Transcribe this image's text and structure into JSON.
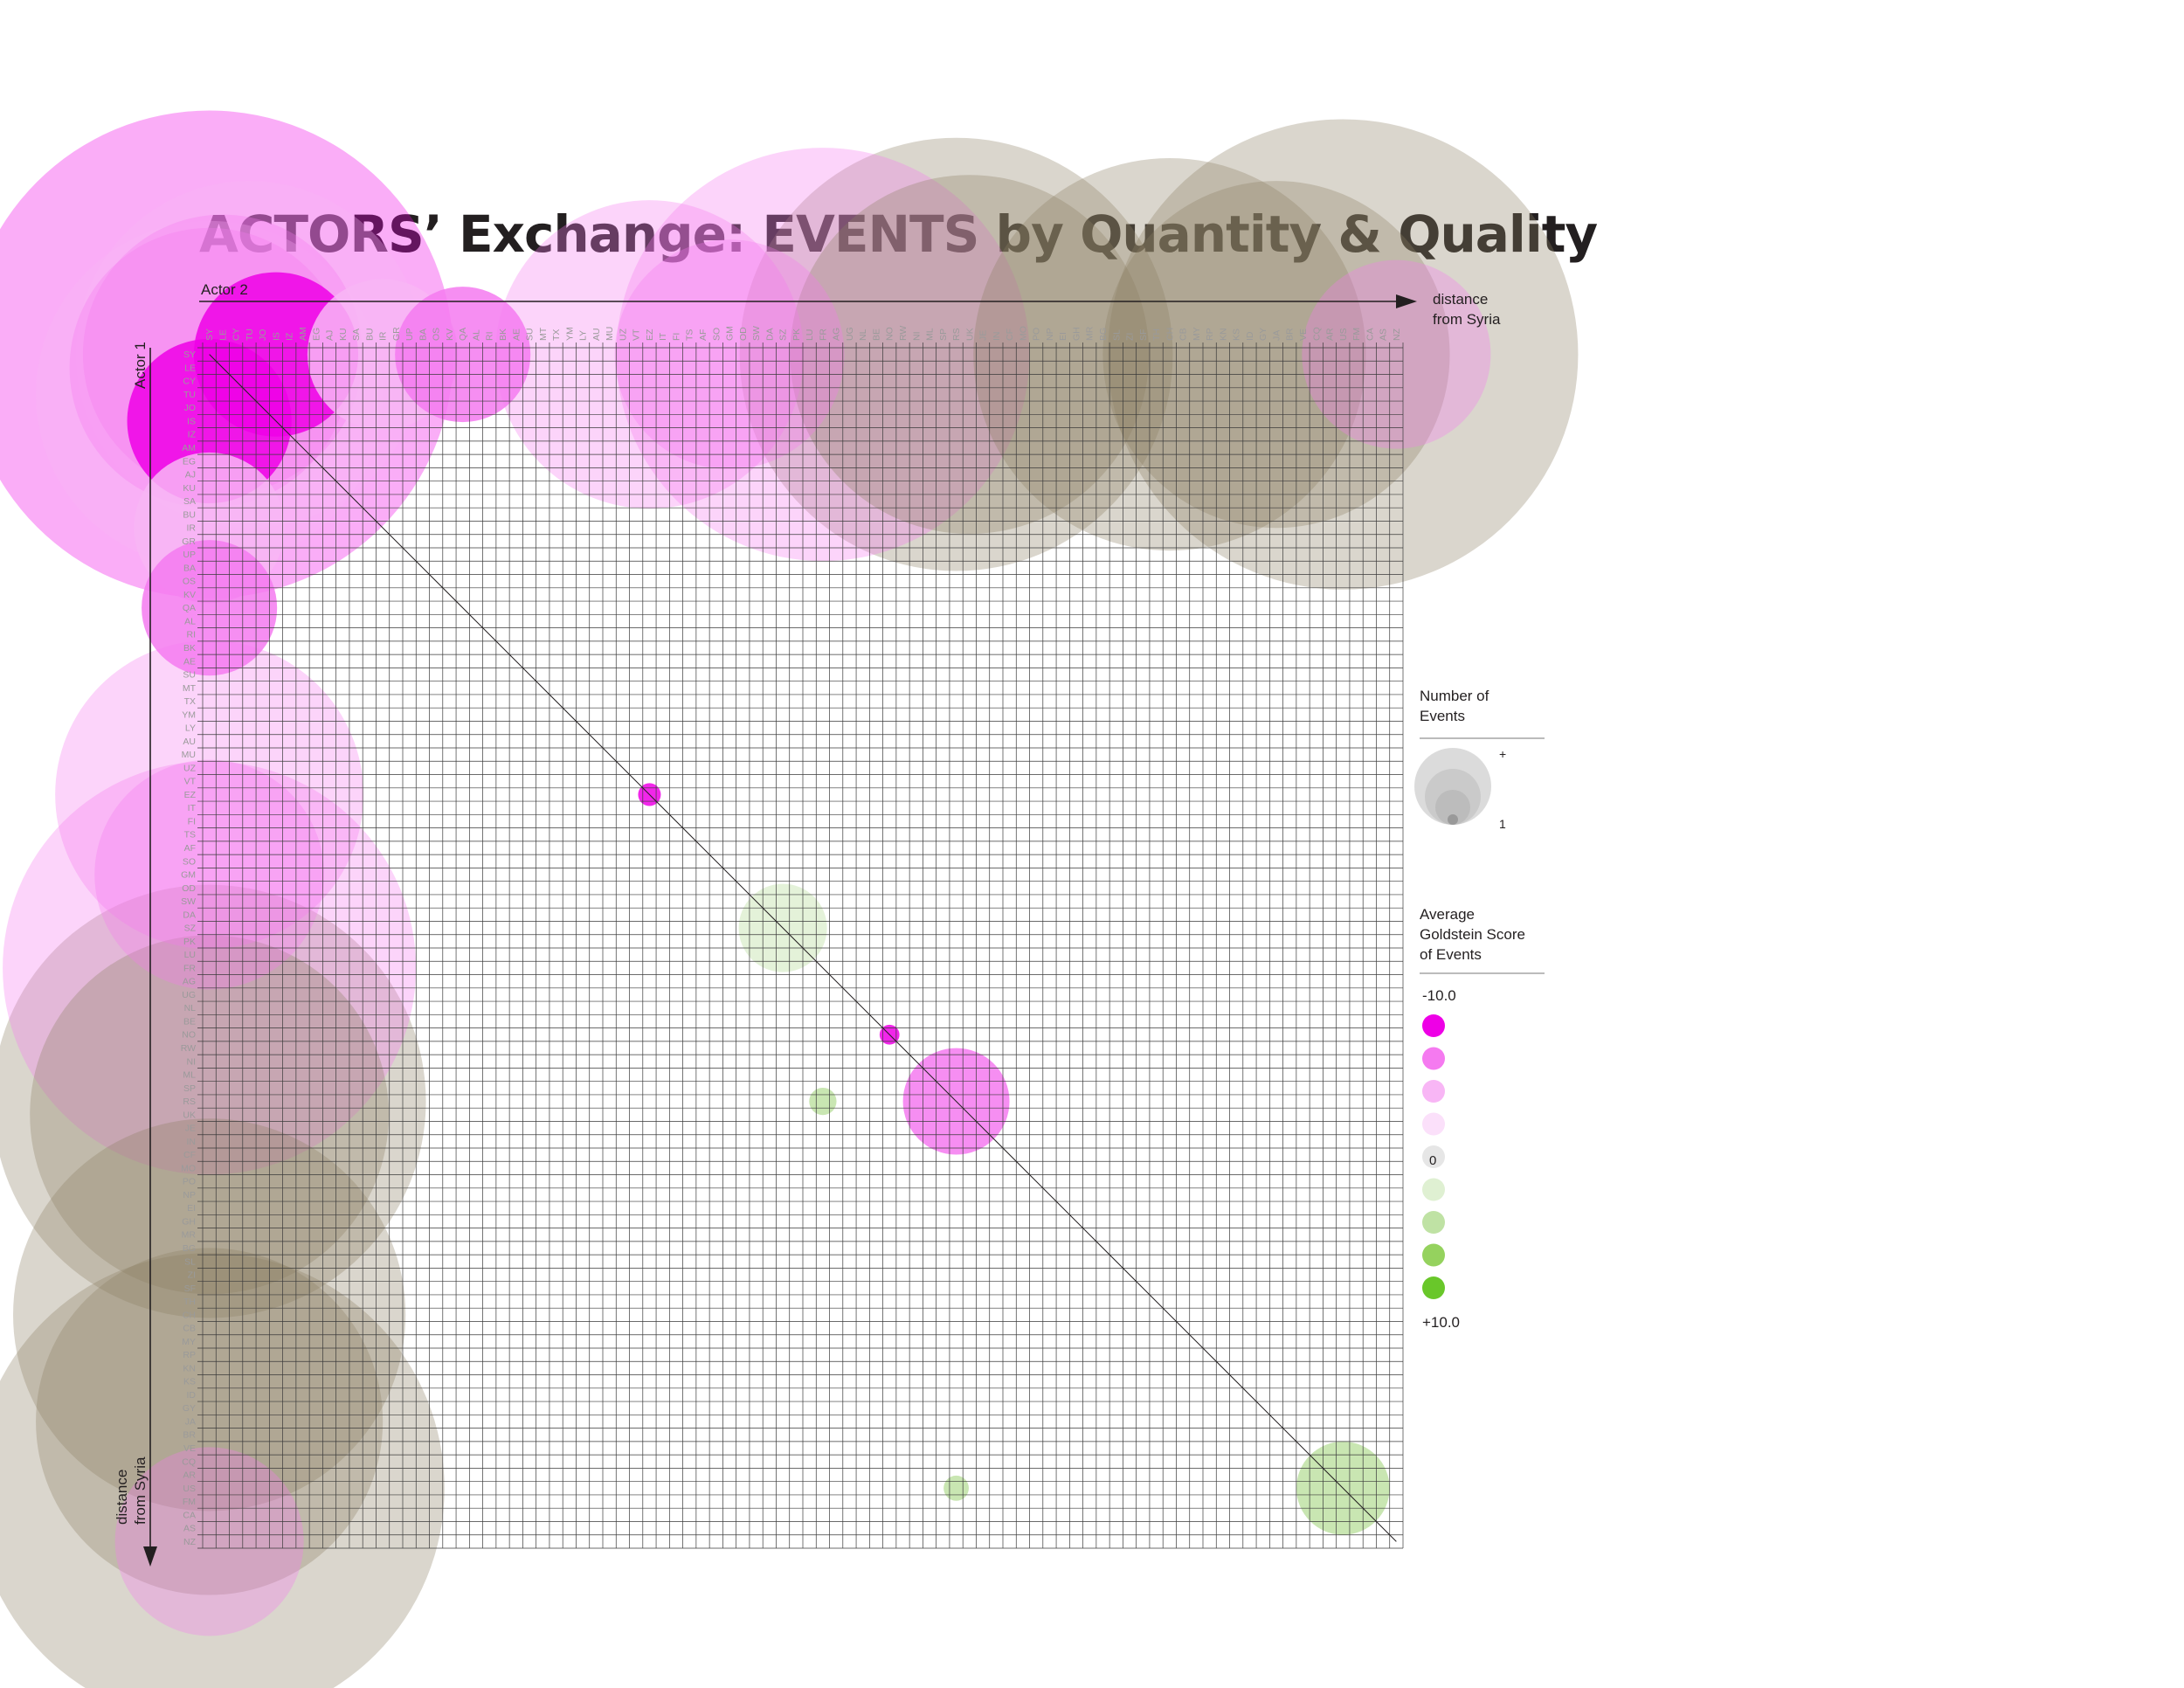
{
  "chart_data": {
    "type": "bubble-matrix",
    "title": "ACTORS’ Exchange: EVENTS by Quantity & Quality",
    "x_axis_label": "Actor 2",
    "y_axis_label": "Actor 1",
    "x_direction_label": [
      "distance",
      "from Syria"
    ],
    "y_direction_label": [
      "distance",
      "from Syria"
    ],
    "countries": [
      "SY",
      "LE",
      "CY",
      "TU",
      "JO",
      "IS",
      "IZ",
      "AM",
      "EG",
      "AJ",
      "KU",
      "SA",
      "BU",
      "IR",
      "GR",
      "UP",
      "BA",
      "OS",
      "KV",
      "QA",
      "AL",
      "RI",
      "BK",
      "AE",
      "SU",
      "MT",
      "TX",
      "YM",
      "LY",
      "AU",
      "MU",
      "UZ",
      "VT",
      "EZ",
      "IT",
      "FI",
      "TS",
      "AF",
      "SO",
      "GM",
      "OD",
      "SW",
      "DA",
      "SZ",
      "PK",
      "LU",
      "FR",
      "AG",
      "UG",
      "NL",
      "BE",
      "NO",
      "RW",
      "NI",
      "ML",
      "SP",
      "RS",
      "UK",
      "JE",
      "IN",
      "CF",
      "MO",
      "PO",
      "NP",
      "EI",
      "GH",
      "MR",
      "BG",
      "SL",
      "ZI",
      "SF",
      "TH",
      "CH",
      "CB",
      "MY",
      "RP",
      "KN",
      "KS",
      "ID",
      "GY",
      "JA",
      "BR",
      "VE",
      "CQ",
      "AR",
      "US",
      "FM",
      "CA",
      "AS",
      "NZ"
    ],
    "legend_size": {
      "title": [
        "Number of",
        "Events"
      ],
      "max_label": "+",
      "min_label": "1"
    },
    "legend_color": {
      "title": [
        "Average",
        "Goldstein Score",
        "of Events"
      ],
      "top_label": "-10.0",
      "zero_label": "0",
      "bottom_label": "+10.0",
      "swatches": [
        "#ee00e6",
        "#f57af0",
        "#f8b6f5",
        "#fbe0fa",
        "#e6e6e6",
        "#dff0d2",
        "#bfe2a4",
        "#95d25e",
        "#69c72a"
      ]
    },
    "events": [
      {
        "a1": "SY",
        "a2": "SY",
        "count": 2800,
        "score": -9
      },
      {
        "a1": "SY",
        "a2": "LE",
        "count": 900,
        "score": -8
      },
      {
        "a1": "LE",
        "a2": "SY",
        "count": 900,
        "score": -8
      },
      {
        "a1": "SY",
        "a2": "TU",
        "count": 1400,
        "score": -6
      },
      {
        "a1": "TU",
        "a2": "SY",
        "count": 1400,
        "score": -6
      },
      {
        "a1": "SY",
        "a2": "IS",
        "count": 300,
        "score": -9
      },
      {
        "a1": "IS",
        "a2": "SY",
        "count": 300,
        "score": -9
      },
      {
        "a1": "SY",
        "a2": "IR",
        "count": 250,
        "score": -5
      },
      {
        "a1": "IR",
        "a2": "SY",
        "count": 250,
        "score": -5
      },
      {
        "a1": "SY",
        "a2": "QA",
        "count": 200,
        "score": -7
      },
      {
        "a1": "QA",
        "a2": "SY",
        "count": 200,
        "score": -7
      },
      {
        "a1": "SY",
        "a2": "FR",
        "count": 2000,
        "score": -8
      },
      {
        "a1": "FR",
        "a2": "SY",
        "count": 2000,
        "score": -8
      },
      {
        "a1": "SY",
        "a2": "EZ",
        "count": 1100,
        "score": -8
      },
      {
        "a1": "EZ",
        "a2": "SY",
        "count": 1100,
        "score": -8
      },
      {
        "a1": "SY",
        "a2": "GM",
        "count": 600,
        "score": -8
      },
      {
        "a1": "GM",
        "a2": "SY",
        "count": 600,
        "score": -8
      },
      {
        "a1": "SY",
        "a2": "UK",
        "count": 1500,
        "score": -3
      },
      {
        "a1": "UK",
        "a2": "SY",
        "count": 1500,
        "score": -3
      },
      {
        "a1": "SY",
        "a2": "RS",
        "count": 2200,
        "score": -2
      },
      {
        "a1": "RS",
        "a2": "SY",
        "count": 2200,
        "score": -2
      },
      {
        "a1": "SY",
        "a2": "CH",
        "count": 1800,
        "score": -3
      },
      {
        "a1": "CH",
        "a2": "SY",
        "count": 1800,
        "score": -3
      },
      {
        "a1": "SY",
        "a2": "US",
        "count": 2600,
        "score": -3
      },
      {
        "a1": "US",
        "a2": "SY",
        "count": 2600,
        "score": -3
      },
      {
        "a1": "SY",
        "a2": "JA",
        "count": 1400,
        "score": 2
      },
      {
        "a1": "JA",
        "a2": "SY",
        "count": 1400,
        "score": 2
      },
      {
        "a1": "SY",
        "a2": "NZ",
        "count": 400,
        "score": -8
      },
      {
        "a1": "NZ",
        "a2": "SY",
        "count": 400,
        "score": -8
      },
      {
        "a1": "SZ",
        "a2": "SZ",
        "count": 80,
        "score": 3
      },
      {
        "a1": "RS",
        "a2": "RS",
        "count": 120,
        "score": -8
      },
      {
        "a1": "US",
        "a2": "US",
        "count": 90,
        "score": 4
      },
      {
        "a1": "EZ",
        "a2": "EZ",
        "count": 3,
        "score": -10
      },
      {
        "a1": "NO",
        "a2": "NO",
        "count": 2,
        "score": -9
      },
      {
        "a1": "RS",
        "a2": "FR",
        "count": 5,
        "score": 4
      },
      {
        "a1": "US",
        "a2": "RS",
        "count": 4,
        "score": 5
      }
    ]
  }
}
